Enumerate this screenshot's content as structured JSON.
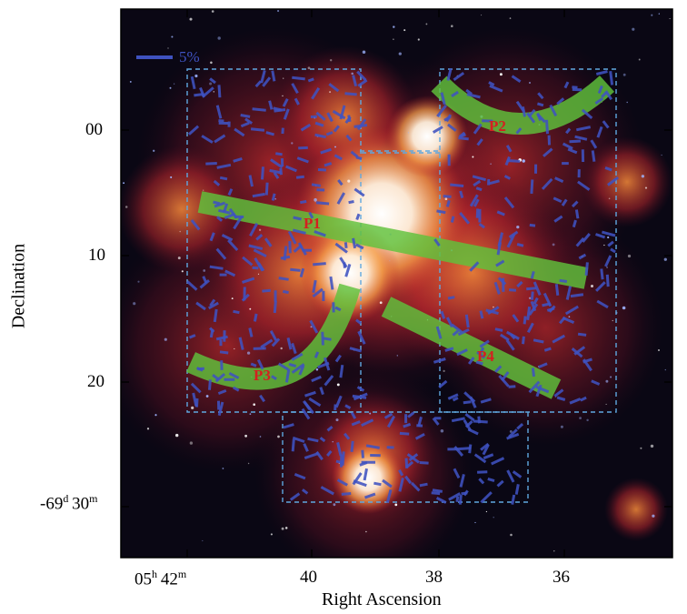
{
  "figure": {
    "xlabel": "Right Ascension",
    "ylabel": "Declination",
    "x_ticks": [
      {
        "prefix": "05",
        "sup1": "h",
        "value": "42",
        "sup2": "m"
      },
      {
        "prefix": "",
        "sup1": "",
        "value": "40",
        "sup2": ""
      },
      {
        "prefix": "",
        "sup1": "",
        "value": "38",
        "sup2": ""
      },
      {
        "prefix": "",
        "sup1": "",
        "value": "36",
        "sup2": ""
      }
    ],
    "y_ticks": [
      {
        "prefix": "",
        "sup1": "",
        "value": "00",
        "sup2": ""
      },
      {
        "prefix": "",
        "sup1": "",
        "value": "10",
        "sup2": ""
      },
      {
        "prefix": "",
        "sup1": "",
        "value": "20",
        "sup2": ""
      },
      {
        "prefix": "-69",
        "sup1": "d",
        "value": "30",
        "sup2": "m"
      }
    ],
    "scale_bar_label": "5%",
    "path_labels": [
      "P1",
      "P2",
      "P3",
      "P4"
    ],
    "colors": {
      "vector": "#3f52c0",
      "path_fill": "#5fc23c",
      "path_label": "#d42020",
      "frame": "#5fa8e0",
      "nebula_core": "#fff4e8",
      "nebula_mid": "#f07a30",
      "nebula_outer": "#a01c28",
      "background": "#0a0714"
    }
  }
}
